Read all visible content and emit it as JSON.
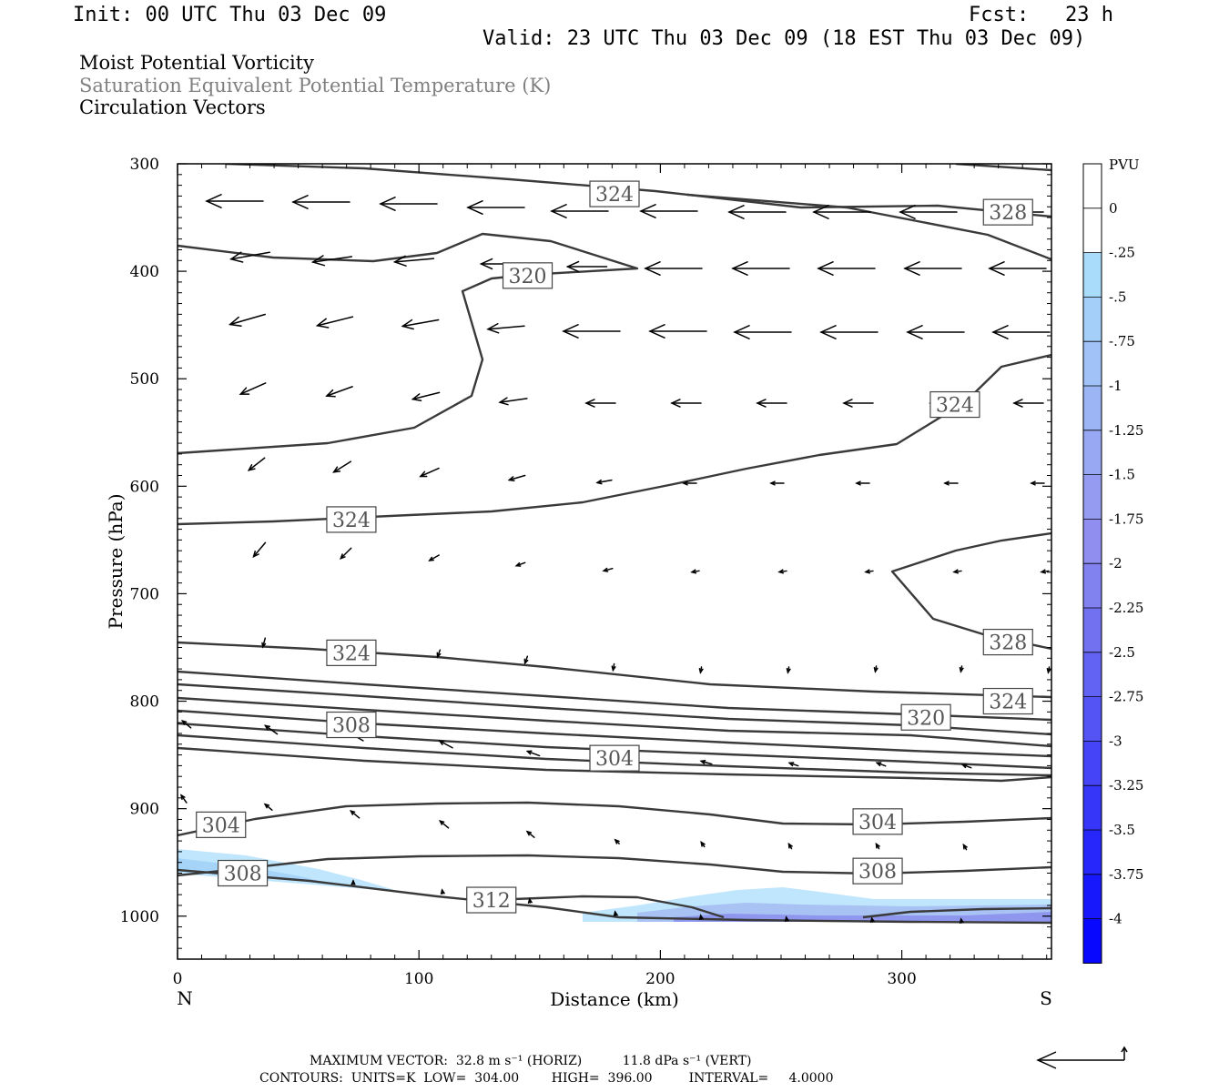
{
  "header": {
    "init": "Init: 00 UTC Thu 03 Dec 09",
    "fcst": "Fcst:   23 h",
    "valid": "Valid: 23 UTC Thu 03 Dec 09 (18 EST Thu 03 Dec 09)"
  },
  "titles": {
    "line1": "Moist Potential Vorticity",
    "line2": "Saturation Equivalent Potential Temperature (K)",
    "line3": "Circulation Vectors"
  },
  "footer": {
    "max_vector": "MAXIMUM VECTOR:  32.8 m s⁻¹ (HORIZ)          11.8 dPa s⁻¹ (VERT)",
    "contours": "CONTOURS:  UNITS=K  LOW=  304.00        HIGH=  396.00         INTERVAL=     4.0000"
  },
  "chart_data": {
    "type": "contour",
    "xlabel": "Distance (km)",
    "ylabel": "Pressure (hPa)",
    "xlim": [
      0,
      362
    ],
    "ylim": [
      1040,
      300
    ],
    "x_ticks": [
      "0",
      "100",
      "200",
      "300"
    ],
    "y_ticks": [
      "300",
      "400",
      "500",
      "600",
      "700",
      "800",
      "900",
      "1000"
    ],
    "left_end_label": "N",
    "right_end_label": "S",
    "colors": {
      "contour": "#3a3a3a",
      "vector": "#000000",
      "grey_title": "#808080"
    },
    "colorbar": {
      "unit": "PVU",
      "labels": [
        "0",
        "-.25",
        "-.5",
        "-.75",
        "-1",
        "-1.25",
        "-1.5",
        "-1.75",
        "-2",
        "-2.25",
        "-2.5",
        "-2.75",
        "-3",
        "-3.25",
        "-3.5",
        "-3.75",
        "-4"
      ],
      "colors": [
        "#ffffff",
        "#ffffff",
        "#a8dcfa",
        "#a4cff8",
        "#a0c2f6",
        "#9cb5f4",
        "#98a8f2",
        "#949bf0",
        "#908eee",
        "#8181ef",
        "#7272f1",
        "#6363f3",
        "#5454f5",
        "#4545f7",
        "#3636f9",
        "#2727fb",
        "#1818fd",
        "#0808ff"
      ]
    },
    "contour_labels": [
      {
        "text": "324",
        "x": 181,
        "p": 328
      },
      {
        "text": "328",
        "x": 344,
        "p": 345
      },
      {
        "text": "320",
        "x": 145,
        "p": 404
      },
      {
        "text": "324",
        "x": 322,
        "p": 524
      },
      {
        "text": "324",
        "x": 72,
        "p": 631
      },
      {
        "text": "328",
        "x": 344,
        "p": 745
      },
      {
        "text": "324",
        "x": 72,
        "p": 755
      },
      {
        "text": "324",
        "x": 344,
        "p": 800
      },
      {
        "text": "320",
        "x": 310,
        "p": 815
      },
      {
        "text": "308",
        "x": 72,
        "p": 822
      },
      {
        "text": "304",
        "x": 181,
        "p": 853
      },
      {
        "text": "304",
        "x": 18,
        "p": 915
      },
      {
        "text": "304",
        "x": 290,
        "p": 912
      },
      {
        "text": "308",
        "x": 27,
        "p": 960
      },
      {
        "text": "308",
        "x": 290,
        "p": 958
      },
      {
        "text": "312",
        "x": 130,
        "p": 985
      }
    ]
  }
}
